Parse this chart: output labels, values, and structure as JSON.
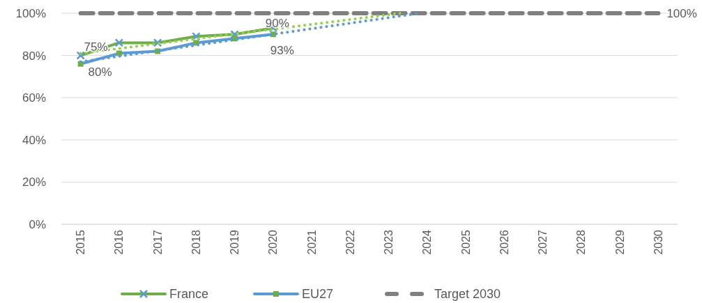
{
  "chart_data": {
    "type": "line",
    "xlim": [
      2014.5,
      2030.5
    ],
    "xticks": [
      2015,
      2016,
      2017,
      2018,
      2019,
      2020,
      2021,
      2022,
      2023,
      2024,
      2025,
      2026,
      2027,
      2028,
      2029,
      2030
    ],
    "ylim": [
      0,
      100
    ],
    "yticks": [
      {
        "value": 0,
        "label": "0%"
      },
      {
        "value": 20,
        "label": "20%"
      },
      {
        "value": 40,
        "label": "40%"
      },
      {
        "value": 60,
        "label": "60%"
      },
      {
        "value": 80,
        "label": "80%"
      },
      {
        "value": 100,
        "label": "100%"
      }
    ],
    "grid": "y",
    "legend": "bottom",
    "series": [
      {
        "name": "France",
        "color": "#70ad47",
        "marker": "cross",
        "x": [
          2015,
          2016,
          2017,
          2018,
          2019,
          2020
        ],
        "values": [
          80,
          86,
          86,
          89,
          90,
          93
        ]
      },
      {
        "name": "EU27",
        "color": "#5b9bd5",
        "marker": "square",
        "x": [
          2015,
          2016,
          2017,
          2018,
          2019,
          2020
        ],
        "values": [
          76,
          81,
          82,
          86,
          88,
          90
        ]
      },
      {
        "name": "Target 2030",
        "color": "#7f7f7f",
        "line_style": "dashed",
        "x": [
          2015,
          2030
        ],
        "values": [
          100,
          100
        ]
      },
      {
        "color": "#92d050",
        "line_style": "dotted",
        "x": [
          2015,
          2023.3
        ],
        "values": [
          81,
          100
        ]
      },
      {
        "color": "#5b9bd5",
        "line_style": "dotted",
        "x": [
          2015,
          2023.8
        ],
        "values": [
          77,
          100
        ]
      }
    ],
    "annotations": [
      {
        "text": "75%",
        "x": 2015,
        "y": 80
      },
      {
        "text": "80%",
        "x": 2015,
        "y": 76
      },
      {
        "text": "90%",
        "x": 2020,
        "y": 93
      },
      {
        "text": "93%",
        "x": 2020,
        "y": 90
      },
      {
        "text": "100%",
        "x": 2030,
        "y": 100
      }
    ]
  }
}
